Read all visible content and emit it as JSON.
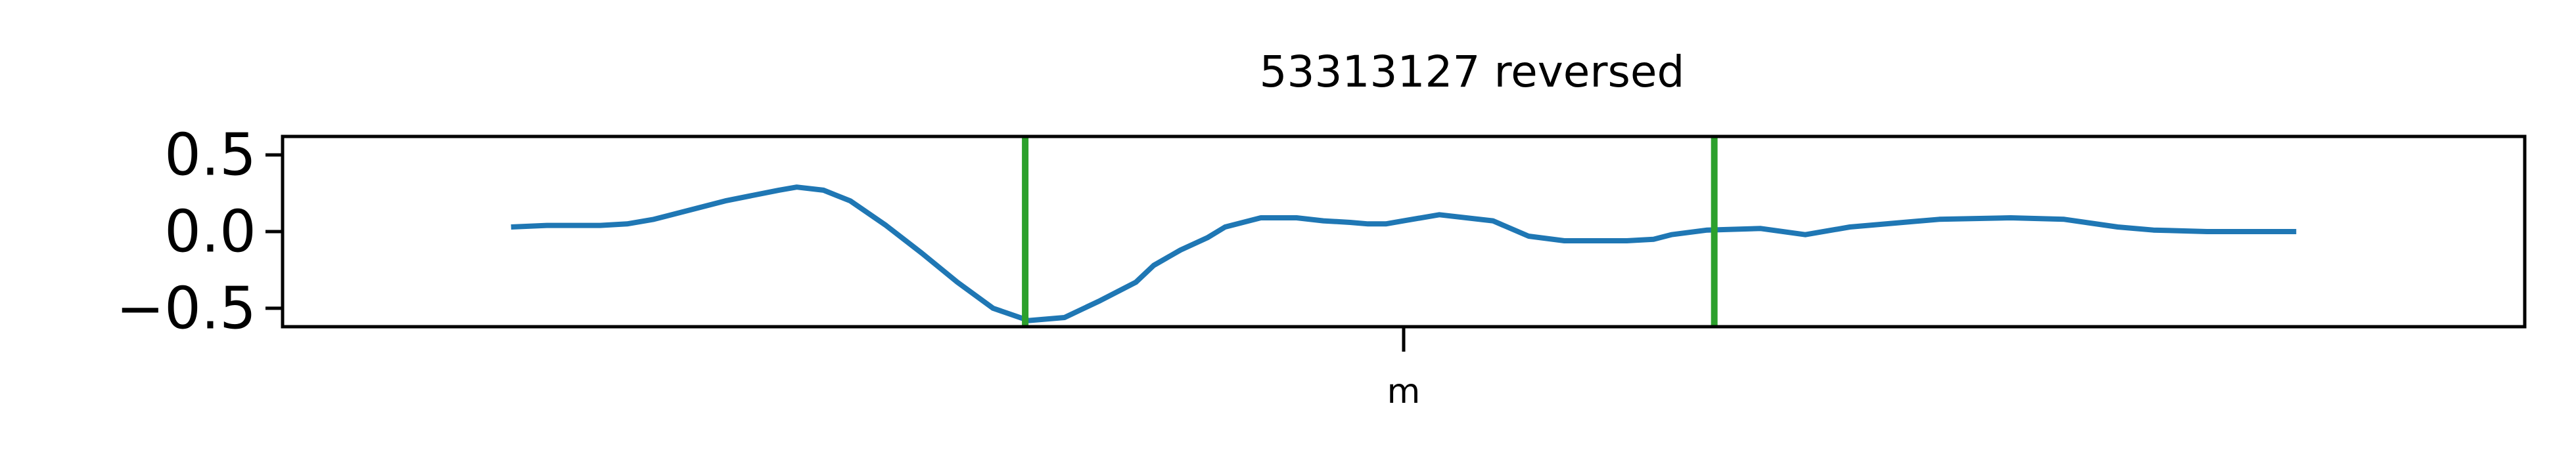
{
  "chart_data": {
    "type": "line",
    "title": "53313127 reversed",
    "xlabel": "",
    "ylabel": "",
    "ylim": [
      -0.62,
      0.62
    ],
    "xlim": [
      -0.128,
      1.128
    ],
    "y_ticks": [
      {
        "value": 0.5,
        "label": "0.5"
      },
      {
        "value": 0.0,
        "label": "0.0"
      },
      {
        "value": -0.5,
        "label": "−0.5"
      }
    ],
    "x_ticks": [
      {
        "value": 0.5,
        "label": "m"
      }
    ],
    "grid": false,
    "series": [
      {
        "color": "#1f77b4",
        "x": [
          0.0,
          0.02,
          0.05,
          0.065,
          0.08,
          0.12,
          0.15,
          0.16,
          0.175,
          0.19,
          0.21,
          0.23,
          0.25,
          0.27,
          0.29,
          0.31,
          0.33,
          0.35,
          0.36,
          0.375,
          0.39,
          0.4,
          0.42,
          0.44,
          0.455,
          0.47,
          0.48,
          0.49,
          0.5,
          0.52,
          0.55,
          0.57,
          0.59,
          0.6,
          0.625,
          0.64,
          0.65,
          0.67,
          0.7,
          0.725,
          0.75,
          0.8,
          0.84,
          0.87,
          0.9,
          0.92,
          0.95,
          0.98,
          1.0
        ],
        "y": [
          0.03,
          0.04,
          0.04,
          0.05,
          0.08,
          0.2,
          0.27,
          0.29,
          0.27,
          0.2,
          0.04,
          -0.14,
          -0.33,
          -0.5,
          -0.58,
          -0.56,
          -0.45,
          -0.33,
          -0.22,
          -0.12,
          -0.04,
          0.03,
          0.09,
          0.09,
          0.07,
          0.06,
          0.05,
          0.05,
          0.07,
          0.11,
          0.07,
          -0.03,
          -0.06,
          -0.06,
          -0.06,
          -0.05,
          -0.02,
          0.01,
          0.02,
          -0.02,
          0.03,
          0.08,
          0.09,
          0.08,
          0.03,
          0.01,
          0.0,
          0.0,
          0.0
        ]
      }
    ],
    "vlines": [
      {
        "x": 0.288,
        "color": "#2ca02c"
      },
      {
        "x": 0.674,
        "color": "#2ca02c"
      }
    ]
  }
}
